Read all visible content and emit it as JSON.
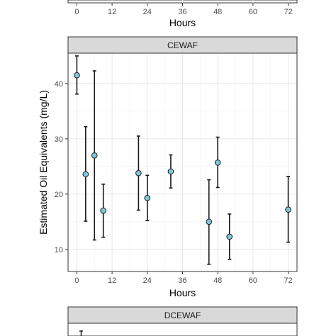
{
  "chart_data": [
    {
      "type": "scatter",
      "panel": "top (partially visible)",
      "title": "",
      "xlabel": "Hours",
      "ylabel": "",
      "x_ticks": [
        0,
        12,
        24,
        36,
        48,
        60,
        72
      ],
      "xlim": [
        -3,
        75
      ],
      "grid": true,
      "series": []
    },
    {
      "type": "scatter",
      "panel": "CEWAF",
      "strip_label": "CEWAF",
      "title": "",
      "xlabel": "Hours",
      "ylabel": "Estimated Oil Equivalents (mg/L)",
      "x_ticks": [
        0,
        12,
        24,
        36,
        48,
        60,
        72
      ],
      "y_ticks": [
        10,
        20,
        30,
        40
      ],
      "xlim": [
        -3,
        75
      ],
      "ylim": [
        6,
        45.5
      ],
      "grid": true,
      "error_bars": true,
      "point_color": "#7ec8dc",
      "series": [
        {
          "points": [
            {
              "x": 0,
              "y": 41.5,
              "lo": 38.1,
              "hi": 45.0
            },
            {
              "x": 3,
              "y": 23.6,
              "lo": 15.1,
              "hi": 32.2
            },
            {
              "x": 6,
              "y": 27.0,
              "lo": 11.7,
              "hi": 42.3
            },
            {
              "x": 9,
              "y": 17.0,
              "lo": 12.2,
              "hi": 21.8
            },
            {
              "x": 21,
              "y": 23.8,
              "lo": 17.1,
              "hi": 30.5
            },
            {
              "x": 24,
              "y": 19.3,
              "lo": 15.2,
              "hi": 23.4
            },
            {
              "x": 32,
              "y": 24.1,
              "lo": 21.1,
              "hi": 27.1
            },
            {
              "x": 45,
              "y": 15.0,
              "lo": 7.3,
              "hi": 22.6
            },
            {
              "x": 48,
              "y": 25.7,
              "lo": 21.2,
              "hi": 30.3
            },
            {
              "x": 52,
              "y": 12.3,
              "lo": 8.2,
              "hi": 16.4
            },
            {
              "x": 72,
              "y": 17.2,
              "lo": 11.3,
              "hi": 23.2
            }
          ]
        }
      ]
    },
    {
      "type": "scatter",
      "panel": "DCEWAF (partially visible)",
      "strip_label": "DCEWAF",
      "title": "",
      "xlabel": "",
      "ylabel": "",
      "grid": true,
      "series": []
    }
  ]
}
